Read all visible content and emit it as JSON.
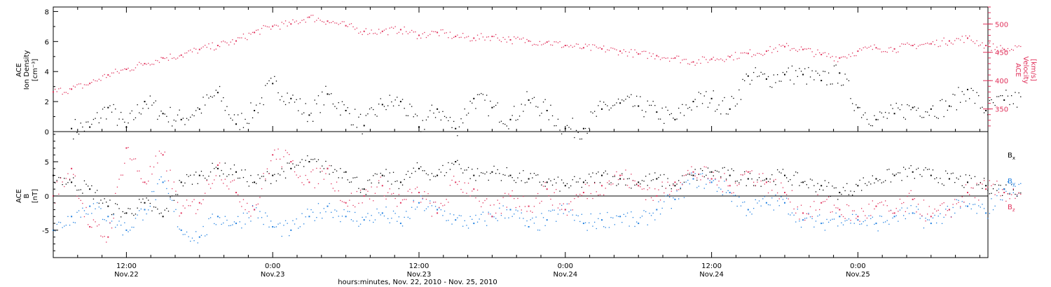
{
  "chart_data": [
    {
      "type": "scatter",
      "panel": "top",
      "ylabel_left": [
        "ACE",
        "Ion Density",
        "[cm⁻³]"
      ],
      "ylabel_right": [
        "ACE",
        "Velocity",
        "[km/s]"
      ],
      "ylim_left": [
        0,
        8.3
      ],
      "yticks_left": [
        "0",
        "2",
        "4",
        "6",
        "8"
      ],
      "ylim_right": [
        310,
        530
      ],
      "yticks_right": [
        "350",
        "400",
        "450",
        "500"
      ],
      "series": [
        {
          "name": "Ion Density",
          "color": "#000000",
          "axis": "left",
          "x": [
            1.5,
            3,
            4.5,
            6,
            7.5,
            9,
            10.5,
            12,
            13.5,
            15,
            16.5,
            18,
            19.5,
            21,
            22.5,
            24,
            25.5,
            27,
            28.5,
            30,
            31.5,
            33,
            34.5,
            36,
            37.5,
            39,
            40.5,
            42,
            43.5,
            45,
            46.5,
            48,
            49.5,
            51,
            52.5,
            54,
            55.5,
            57,
            58.5,
            60,
            61.5,
            63,
            64.5,
            66,
            67.5,
            69,
            70.5,
            72,
            73.5,
            75,
            76.5,
            78
          ],
          "values": [
            0.2,
            0.3,
            1.6,
            0.3,
            2.0,
            1.2,
            0.8,
            1.5,
            2.6,
            0.5,
            1.4,
            3.2,
            2.2,
            1.1,
            2.5,
            1.4,
            0.4,
            1.8,
            2.0,
            0.3,
            1.5,
            0.2,
            2.2,
            1.6,
            0.8,
            2.1,
            1.4,
            0.2,
            0.2,
            1.5,
            1.9,
            1.7,
            1.3,
            0.8,
            2.0,
            2.2,
            1.5,
            3.7,
            3.5,
            3.8,
            3.8,
            3.4,
            3.9,
            1.6,
            0.8,
            1.2,
            1.6,
            1.5,
            1.7,
            2.8,
            1.4,
            2.1
          ]
        },
        {
          "name": "Velocity",
          "color": "#e0305a",
          "axis": "right",
          "x": [
            0,
            1.5,
            3,
            4.5,
            6,
            7.5,
            9,
            10.5,
            12,
            13.5,
            15,
            16.5,
            18,
            19.5,
            21,
            22.5,
            24,
            25.5,
            27,
            28.5,
            30,
            31.5,
            33,
            34.5,
            36,
            37.5,
            39,
            40.5,
            42,
            43.5,
            45,
            46.5,
            48,
            49.5,
            51,
            52.5,
            54,
            55.5,
            57,
            58.5,
            60,
            61.5,
            63,
            64.5,
            66,
            67.5,
            69,
            70.5,
            72,
            73.5,
            75,
            76.5,
            78
          ],
          "values": [
            380,
            385,
            395,
            410,
            420,
            430,
            440,
            445,
            455,
            462,
            470,
            485,
            496,
            500,
            512,
            505,
            497,
            487,
            487,
            490,
            480,
            485,
            478,
            475,
            478,
            472,
            470,
            468,
            462,
            458,
            456,
            452,
            447,
            444,
            440,
            433,
            438,
            442,
            448,
            452,
            460,
            455,
            446,
            440,
            452,
            458,
            456,
            462,
            465,
            470,
            475,
            462,
            455
          ]
        }
      ]
    },
    {
      "type": "scatter",
      "panel": "bottom",
      "ylabel_left": [
        "ACE",
        "B",
        "[nT]"
      ],
      "ylim": [
        -9,
        9.4
      ],
      "yticks": [
        "-5",
        "0",
        "5"
      ],
      "legend": {
        "position": "right",
        "entries": [
          {
            "base": "B",
            "sub": "x",
            "color": "#000000"
          },
          {
            "base": "B",
            "sub": "y",
            "color": "#1f7fe0"
          },
          {
            "base": "B",
            "sub": "z",
            "color": "#e0305a"
          }
        ]
      },
      "x_tick_labels": [
        {
          "time": "12:00",
          "date": "Nov.22"
        },
        {
          "time": "0:00",
          "date": "Nov.23"
        },
        {
          "time": "12:00",
          "date": "Nov.23"
        },
        {
          "time": "0:00",
          "date": "Nov.24"
        },
        {
          "time": "12:00",
          "date": "Nov.24"
        },
        {
          "time": "0:00",
          "date": "Nov.25"
        }
      ],
      "xlabel": "hours:minutes, Nov. 22, 2010 - Nov. 25, 2010",
      "series": [
        {
          "name": "Bx",
          "color": "#000000",
          "x": [
            0,
            1.5,
            3,
            4.5,
            6,
            7.5,
            9,
            10.5,
            12,
            13.5,
            15,
            16.5,
            18,
            19.5,
            21,
            22.5,
            24,
            25.5,
            27,
            28.5,
            30,
            31.5,
            33,
            34.5,
            36,
            37.5,
            39,
            40.5,
            42,
            43.5,
            45,
            46.5,
            48,
            49.5,
            51,
            52.5,
            54,
            55.5,
            57,
            58.5,
            60,
            61.5,
            63,
            64.5,
            66,
            67.5,
            69,
            70.5,
            72,
            73.5,
            75,
            76.5,
            78
          ],
          "values": [
            3.0,
            2.0,
            1.0,
            -1.5,
            -2.5,
            -1.0,
            -3.0,
            2.0,
            3.0,
            4.0,
            3.5,
            2.0,
            3.0,
            4.0,
            5.0,
            4.0,
            3.5,
            1.0,
            3.0,
            2.0,
            4.0,
            3.0,
            5.0,
            3.0,
            3.5,
            3.0,
            2.5,
            2.0,
            1.5,
            2.0,
            3.0,
            2.5,
            2.0,
            2.5,
            1.5,
            3.0,
            3.5,
            3.0,
            2.5,
            2.5,
            3.0,
            2.0,
            1.5,
            0.5,
            1.5,
            2.5,
            3.0,
            3.5,
            3.0,
            2.5,
            2.0,
            1.5,
            1.0
          ]
        },
        {
          "name": "By",
          "color": "#1f7fe0",
          "x": [
            0,
            1.5,
            3,
            4.5,
            6,
            7.5,
            9,
            10.5,
            12,
            13.5,
            15,
            16.5,
            18,
            19.5,
            21,
            22.5,
            24,
            25.5,
            27,
            28.5,
            30,
            31.5,
            33,
            34.5,
            36,
            37.5,
            39,
            40.5,
            42,
            43.5,
            45,
            46.5,
            48,
            49.5,
            51,
            52.5,
            54,
            55.5,
            57,
            58.5,
            60,
            61.5,
            63,
            64.5,
            66,
            67.5,
            69,
            70.5,
            72,
            73.5,
            75,
            76.5,
            78
          ],
          "values": [
            -5.0,
            -3.0,
            -1.5,
            -3.0,
            -5.0,
            -2.0,
            2.0,
            -5.0,
            -6.0,
            -3.0,
            -4.0,
            -2.0,
            -4.5,
            -5.0,
            -3.0,
            -1.5,
            -3.0,
            -3.5,
            -2.5,
            -4.0,
            -1.0,
            -2.0,
            -3.5,
            -4.0,
            -3.0,
            -2.0,
            -4.5,
            -3.5,
            -2.0,
            -4.0,
            -3.5,
            -3.0,
            -4.0,
            -2.0,
            -0.5,
            2.5,
            2.0,
            0.5,
            -2.0,
            -1.0,
            -1.0,
            -3.5,
            -4.0,
            -3.0,
            -3.5,
            -4.0,
            -3.0,
            -2.5,
            -4.0,
            -2.0,
            -1.5,
            -2.5,
            1.0
          ]
        },
        {
          "name": "Bz",
          "color": "#e0305a",
          "x": [
            0,
            1.5,
            3,
            4.5,
            6,
            7.5,
            9,
            10.5,
            12,
            13.5,
            15,
            16.5,
            18,
            19.5,
            21,
            22.5,
            24,
            25.5,
            27,
            28.5,
            30,
            31.5,
            33,
            34.5,
            36,
            37.5,
            39,
            40.5,
            42,
            43.5,
            45,
            46.5,
            48,
            49.5,
            51,
            52.5,
            54,
            55.5,
            57,
            58.5,
            60,
            61.5,
            63,
            64.5,
            66,
            67.5,
            69,
            70.5,
            72,
            73.5,
            75,
            76.5,
            78
          ],
          "values": [
            0.0,
            4.0,
            -4.5,
            -6.0,
            7.0,
            2.0,
            6.0,
            -2.5,
            -1.0,
            4.5,
            0.5,
            -2.0,
            6.0,
            5.0,
            2.0,
            4.0,
            -1.0,
            0.0,
            1.5,
            -1.0,
            0.5,
            -2.5,
            2.0,
            1.0,
            -3.0,
            0.0,
            -1.5,
            1.0,
            -2.0,
            0.5,
            1.5,
            3.0,
            1.5,
            0.0,
            2.0,
            3.5,
            2.5,
            1.5,
            3.5,
            2.0,
            0.5,
            -2.5,
            -1.0,
            -2.0,
            -3.0,
            -1.5,
            -2.5,
            -0.5,
            -3.0,
            -2.0,
            0.5,
            1.0,
            0.5
          ]
        }
      ]
    }
  ]
}
